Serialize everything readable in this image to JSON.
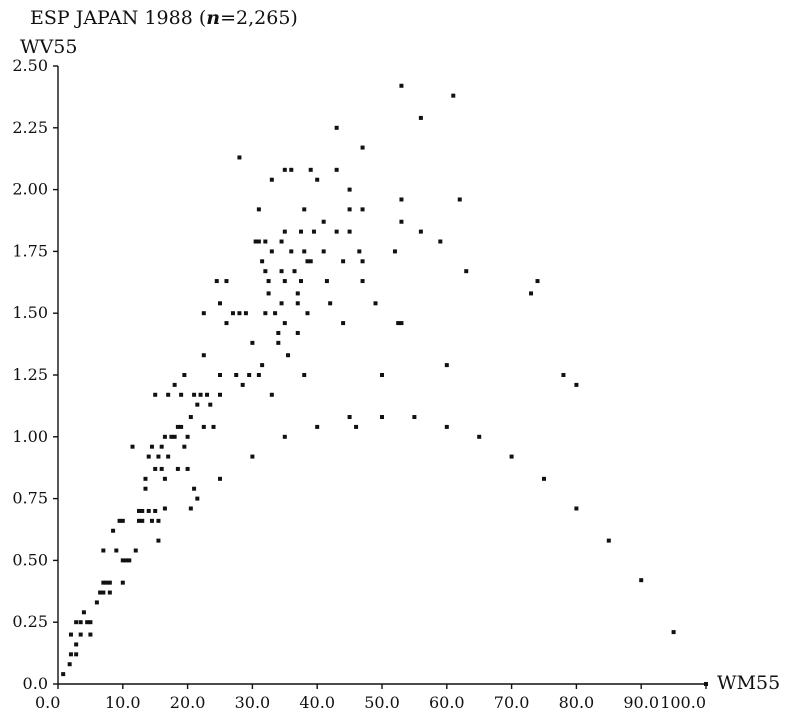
{
  "chart_data": {
    "type": "scatter",
    "title": "ESP JAPAN 1988 (n=2,265)",
    "title_parts": {
      "prefix": "ESP JAPAN 1988 (",
      "n_symbol": "n",
      "suffix": "=2,265)"
    },
    "xlabel": "WM55",
    "ylabel": "WV55",
    "xlim": [
      0,
      100
    ],
    "ylim": [
      0,
      2.5
    ],
    "grid": false,
    "x_ticks": [
      "0.0",
      "10.0",
      "20.0",
      "30.0",
      "40.0",
      "50.0",
      "60.0",
      "70.0",
      "80.0",
      "90.0",
      "100.0"
    ],
    "y_ticks": [
      "0.0",
      "0.25",
      "0.50",
      "0.75",
      "1.00",
      "1.25",
      "1.50",
      "1.75",
      "2.00",
      "2.25",
      "2.50"
    ],
    "points": [
      [
        0.8,
        0.04
      ],
      [
        1.8,
        0.08
      ],
      [
        2.0,
        0.12
      ],
      [
        2.0,
        0.2
      ],
      [
        2.8,
        0.12
      ],
      [
        2.8,
        0.16
      ],
      [
        2.8,
        0.25
      ],
      [
        3.5,
        0.2
      ],
      [
        3.5,
        0.25
      ],
      [
        4.0,
        0.29
      ],
      [
        4.5,
        0.25
      ],
      [
        5.0,
        0.2
      ],
      [
        5.0,
        0.25
      ],
      [
        6.0,
        0.33
      ],
      [
        6.5,
        0.37
      ],
      [
        7.0,
        0.37
      ],
      [
        7.0,
        0.41
      ],
      [
        7.0,
        0.54
      ],
      [
        7.5,
        0.41
      ],
      [
        8.0,
        0.37
      ],
      [
        8.0,
        0.41
      ],
      [
        8.5,
        0.62
      ],
      [
        9.0,
        0.54
      ],
      [
        9.5,
        0.66
      ],
      [
        10.0,
        0.41
      ],
      [
        10.0,
        0.5
      ],
      [
        10.0,
        0.66
      ],
      [
        10.5,
        0.5
      ],
      [
        11.0,
        0.5
      ],
      [
        11.5,
        0.96
      ],
      [
        12.0,
        0.54
      ],
      [
        12.5,
        0.66
      ],
      [
        12.5,
        0.7
      ],
      [
        13.0,
        0.66
      ],
      [
        13.0,
        0.7
      ],
      [
        13.5,
        0.79
      ],
      [
        13.5,
        0.83
      ],
      [
        14.0,
        0.7
      ],
      [
        14.0,
        0.92
      ],
      [
        14.5,
        0.66
      ],
      [
        14.5,
        0.96
      ],
      [
        15.0,
        0.7
      ],
      [
        15.0,
        0.87
      ],
      [
        15.0,
        1.17
      ],
      [
        15.5,
        0.58
      ],
      [
        15.5,
        0.66
      ],
      [
        15.5,
        0.92
      ],
      [
        16.0,
        0.87
      ],
      [
        16.0,
        0.96
      ],
      [
        16.5,
        1.0
      ],
      [
        16.5,
        0.83
      ],
      [
        16.5,
        0.71
      ],
      [
        17.0,
        0.92
      ],
      [
        17.0,
        1.17
      ],
      [
        17.5,
        1.0
      ],
      [
        18.0,
        1.21
      ],
      [
        18.0,
        1.0
      ],
      [
        18.5,
        1.04
      ],
      [
        18.5,
        0.87
      ],
      [
        19.0,
        1.17
      ],
      [
        19.0,
        1.04
      ],
      [
        19.5,
        1.25
      ],
      [
        19.5,
        0.96
      ],
      [
        20.0,
        0.87
      ],
      [
        20.0,
        1.0
      ],
      [
        20.5,
        0.71
      ],
      [
        20.5,
        1.08
      ],
      [
        21.0,
        1.17
      ],
      [
        21.0,
        0.79
      ],
      [
        21.5,
        0.75
      ],
      [
        21.5,
        1.13
      ],
      [
        22.0,
        1.17
      ],
      [
        22.5,
        1.04
      ],
      [
        22.5,
        1.33
      ],
      [
        22.5,
        1.5
      ],
      [
        23.0,
        1.17
      ],
      [
        23.5,
        1.13
      ],
      [
        24.0,
        1.04
      ],
      [
        24.5,
        1.63
      ],
      [
        25.0,
        1.54
      ],
      [
        25.0,
        1.25
      ],
      [
        25.0,
        1.17
      ],
      [
        25.0,
        0.83
      ],
      [
        26.0,
        1.46
      ],
      [
        26.0,
        1.63
      ],
      [
        27.0,
        1.5
      ],
      [
        27.5,
        1.25
      ],
      [
        28.0,
        2.13
      ],
      [
        28.0,
        1.5
      ],
      [
        28.5,
        1.21
      ],
      [
        29.0,
        1.5
      ],
      [
        29.5,
        1.25
      ],
      [
        30.0,
        1.38
      ],
      [
        30.0,
        0.92
      ],
      [
        30.5,
        1.79
      ],
      [
        31.0,
        1.92
      ],
      [
        31.0,
        1.79
      ],
      [
        31.0,
        1.25
      ],
      [
        31.5,
        1.71
      ],
      [
        31.5,
        1.29
      ],
      [
        32.0,
        1.79
      ],
      [
        32.0,
        1.67
      ],
      [
        32.0,
        1.5
      ],
      [
        32.5,
        1.63
      ],
      [
        32.5,
        1.58
      ],
      [
        33.0,
        2.04
      ],
      [
        33.0,
        1.75
      ],
      [
        33.0,
        1.17
      ],
      [
        33.5,
        1.5
      ],
      [
        34.0,
        1.42
      ],
      [
        34.0,
        1.38
      ],
      [
        34.5,
        1.79
      ],
      [
        34.5,
        1.67
      ],
      [
        34.5,
        1.54
      ],
      [
        35.0,
        2.08
      ],
      [
        35.0,
        1.83
      ],
      [
        35.0,
        1.63
      ],
      [
        35.0,
        1.46
      ],
      [
        35.0,
        1.0
      ],
      [
        35.5,
        1.33
      ],
      [
        36.0,
        2.08
      ],
      [
        36.0,
        1.75
      ],
      [
        36.5,
        1.67
      ],
      [
        37.0,
        1.58
      ],
      [
        37.0,
        1.54
      ],
      [
        37.0,
        1.42
      ],
      [
        37.5,
        1.83
      ],
      [
        37.5,
        1.63
      ],
      [
        38.0,
        1.92
      ],
      [
        38.0,
        1.75
      ],
      [
        38.0,
        1.25
      ],
      [
        38.5,
        1.71
      ],
      [
        38.5,
        1.5
      ],
      [
        39.0,
        2.08
      ],
      [
        39.0,
        1.71
      ],
      [
        39.5,
        1.83
      ],
      [
        40.0,
        2.04
      ],
      [
        40.0,
        1.04
      ],
      [
        41.0,
        1.87
      ],
      [
        41.0,
        1.75
      ],
      [
        41.5,
        1.63
      ],
      [
        42.0,
        1.54
      ],
      [
        43.0,
        2.25
      ],
      [
        43.0,
        2.08
      ],
      [
        43.0,
        1.83
      ],
      [
        44.0,
        1.71
      ],
      [
        44.0,
        1.46
      ],
      [
        45.0,
        2.0
      ],
      [
        45.0,
        1.92
      ],
      [
        45.0,
        1.83
      ],
      [
        45.0,
        1.08
      ],
      [
        46.0,
        1.04
      ],
      [
        46.5,
        1.75
      ],
      [
        47.0,
        2.17
      ],
      [
        47.0,
        1.92
      ],
      [
        47.0,
        1.71
      ],
      [
        47.0,
        1.63
      ],
      [
        49.0,
        1.54
      ],
      [
        50.0,
        1.25
      ],
      [
        50.0,
        1.08
      ],
      [
        52.0,
        1.75
      ],
      [
        52.5,
        1.46
      ],
      [
        53.0,
        2.42
      ],
      [
        53.0,
        1.96
      ],
      [
        53.0,
        1.87
      ],
      [
        53.0,
        1.46
      ],
      [
        55.0,
        1.08
      ],
      [
        56.0,
        2.29
      ],
      [
        56.0,
        1.83
      ],
      [
        59.0,
        1.79
      ],
      [
        60.0,
        1.29
      ],
      [
        60.0,
        1.04
      ],
      [
        61.0,
        2.38
      ],
      [
        62.0,
        1.96
      ],
      [
        63.0,
        1.67
      ],
      [
        65.0,
        1.0
      ],
      [
        70.0,
        0.92
      ],
      [
        73.0,
        1.58
      ],
      [
        74.0,
        1.63
      ],
      [
        75.0,
        0.83
      ],
      [
        78.0,
        1.25
      ],
      [
        80.0,
        1.21
      ],
      [
        80.0,
        0.71
      ],
      [
        85.0,
        0.58
      ],
      [
        90.0,
        0.42
      ],
      [
        95.0,
        0.21
      ],
      [
        100.0,
        0.0
      ]
    ]
  }
}
